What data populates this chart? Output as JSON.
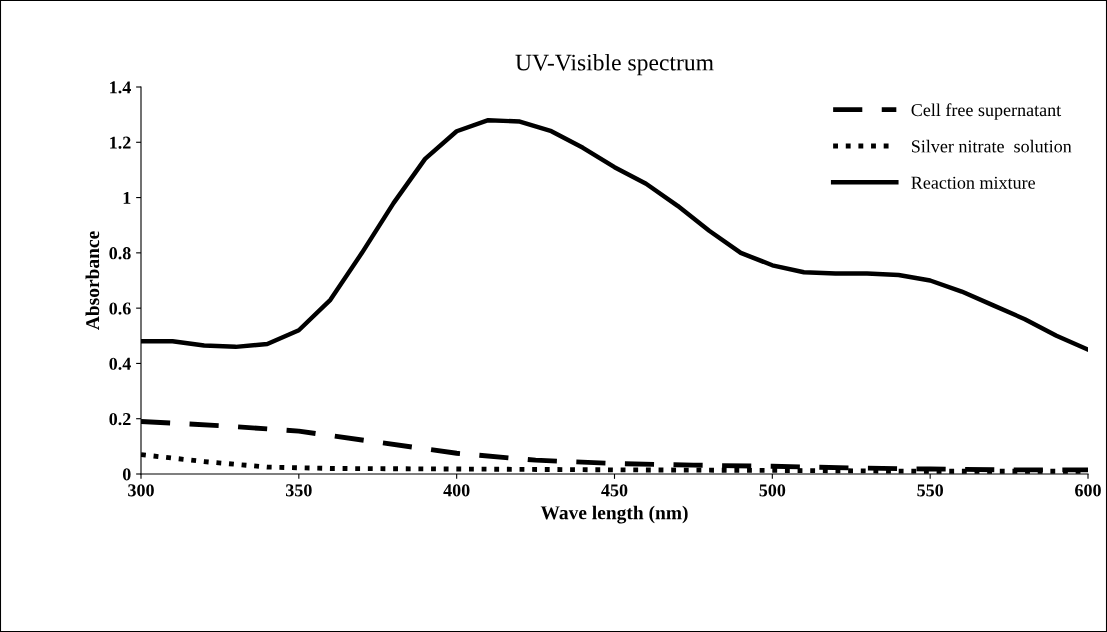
{
  "chart_data": {
    "type": "line",
    "title": "UV-Visible spectrum",
    "xlabel": "Wave length (nm)",
    "ylabel": "Absorbance",
    "xlim": [
      300,
      600
    ],
    "xticks": [
      300,
      350,
      400,
      450,
      500,
      550,
      600
    ],
    "ylim": [
      0,
      1.4
    ],
    "yticks": [
      0,
      0.2,
      0.4,
      0.6,
      0.8,
      1,
      1.2,
      1.4
    ],
    "grid": false,
    "legend": "top right",
    "marker": "none",
    "series": [
      {
        "name": "Cell free supernatant",
        "color": "#000000",
        "line_style": "dashed",
        "x": [
          300,
          325,
          350,
          375,
          400,
          425,
          450,
          475,
          500,
          525,
          550,
          575,
          600
        ],
        "values": [
          0.19,
          0.175,
          0.155,
          0.115,
          0.075,
          0.05,
          0.038,
          0.032,
          0.028,
          0.022,
          0.018,
          0.015,
          0.015
        ]
      },
      {
        "name": "Silver nitrate  solution",
        "color": "#000000",
        "line_style": "dotted",
        "x": [
          300,
          320,
          340,
          360,
          400,
          450,
          500,
          550,
          600
        ],
        "values": [
          0.07,
          0.045,
          0.025,
          0.02,
          0.018,
          0.015,
          0.013,
          0.01,
          0.01
        ]
      },
      {
        "name": "Reaction mixture",
        "color": "#000000",
        "line_style": "solid",
        "x": [
          300,
          310,
          320,
          330,
          340,
          350,
          360,
          370,
          380,
          390,
          400,
          410,
          420,
          430,
          440,
          450,
          460,
          470,
          480,
          490,
          500,
          510,
          520,
          530,
          540,
          550,
          560,
          570,
          580,
          590,
          600
        ],
        "values": [
          0.48,
          0.48,
          0.465,
          0.46,
          0.47,
          0.52,
          0.63,
          0.8,
          0.98,
          1.14,
          1.24,
          1.28,
          1.275,
          1.24,
          1.18,
          1.11,
          1.05,
          0.97,
          0.88,
          0.8,
          0.755,
          0.73,
          0.725,
          0.725,
          0.72,
          0.7,
          0.66,
          0.61,
          0.56,
          0.5,
          0.45
        ]
      }
    ]
  }
}
